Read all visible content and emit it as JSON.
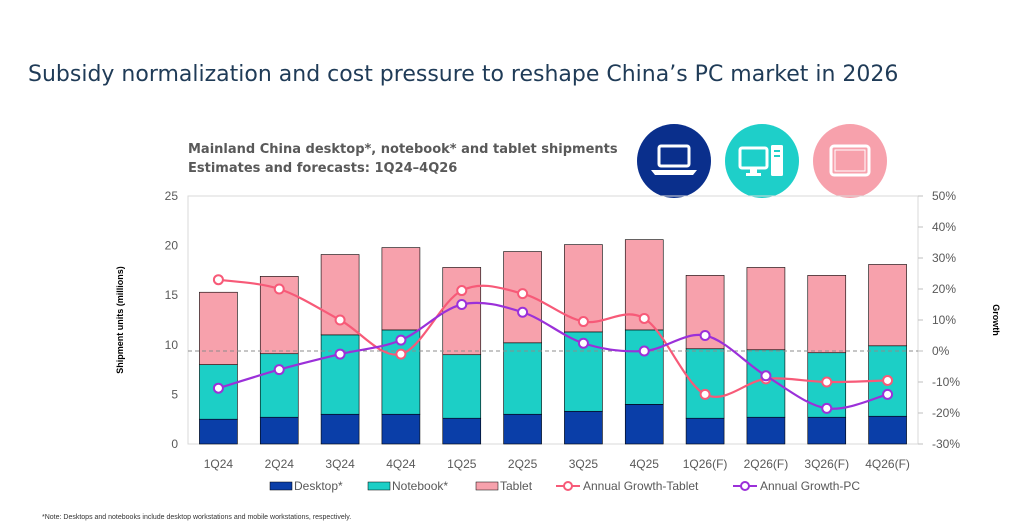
{
  "page": {
    "title": "Subsidy normalization and cost pressure to reshape China’s PC market in 2026",
    "footnote": "*Note: Desktops and notebooks include desktop workstations and mobile workstations, respectively."
  },
  "icons": {
    "notebook": {
      "name": "laptop-icon",
      "color": "#0a2f8c"
    },
    "desktop": {
      "name": "desktop-computer-icon",
      "color": "#1ecfc9"
    },
    "tablet": {
      "name": "tablet-icon",
      "color": "#f7a1ac"
    }
  },
  "chart_data": {
    "type": "bar",
    "stacked": true,
    "title": "Mainland China desktop*, notebook* and tablet shipments",
    "subtitle": "Estimates and forecasts: 1Q24–4Q26",
    "ylabel": "Shipment units (millions)",
    "y2label": "Growth",
    "ylim": [
      0,
      25
    ],
    "yticks": [
      "0",
      "5",
      "10",
      "15",
      "20",
      "25"
    ],
    "y2lim": [
      -30,
      50
    ],
    "y2ticks": [
      "-30%",
      "-20%",
      "-10%",
      "0%",
      "10%",
      "20%",
      "30%",
      "40%",
      "50%"
    ],
    "categories": [
      "1Q24",
      "2Q24",
      "3Q24",
      "4Q24",
      "1Q25",
      "2Q25",
      "3Q25",
      "4Q25",
      "1Q26(F)",
      "2Q26(F)",
      "3Q26(F)",
      "4Q26(F)"
    ],
    "series": [
      {
        "name": "Desktop*",
        "kind": "bar",
        "color": "#0a3ea8",
        "values": [
          2.5,
          2.7,
          3.0,
          3.0,
          2.6,
          3.0,
          3.3,
          4.0,
          2.6,
          2.7,
          2.7,
          2.8
        ]
      },
      {
        "name": "Notebook*",
        "kind": "bar",
        "color": "#1ccfc6",
        "values": [
          5.5,
          6.4,
          8.0,
          8.5,
          6.4,
          7.2,
          8.0,
          7.5,
          7.0,
          6.8,
          6.5,
          7.1
        ]
      },
      {
        "name": "Tablet",
        "kind": "bar",
        "color": "#f7a1ac",
        "values": [
          7.3,
          7.8,
          8.1,
          8.3,
          8.8,
          9.2,
          8.8,
          9.1,
          7.4,
          8.3,
          7.8,
          8.2
        ]
      },
      {
        "name": "Annual Growth-Tablet",
        "kind": "line",
        "axis": "right",
        "color": "#f75a78",
        "values": [
          23,
          20,
          10,
          -1,
          19.5,
          18.5,
          9.5,
          10.5,
          -14,
          -9,
          -10,
          -9.5
        ]
      },
      {
        "name": "Annual Growth-PC",
        "kind": "line",
        "axis": "right",
        "color": "#9b30d9",
        "values": [
          -12,
          -6,
          -1,
          3.5,
          15,
          12.5,
          2.5,
          0,
          5,
          -8,
          -18.5,
          -14
        ]
      }
    ],
    "reference_line": {
      "axis": "right",
      "value": 0,
      "style": "dashed"
    },
    "legend_position": "bottom"
  }
}
